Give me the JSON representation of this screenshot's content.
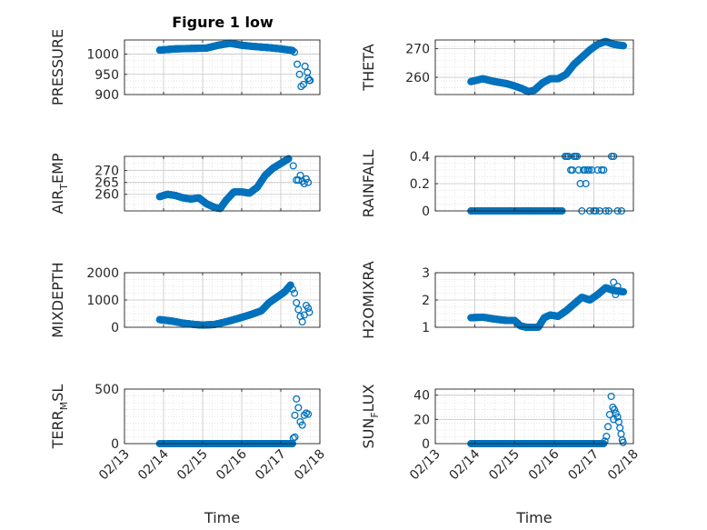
{
  "figure": {
    "title": "Figure 1 low"
  },
  "colors": {
    "marker": "#0072BD",
    "grid": "#dcdcdc",
    "axis": "#262626"
  },
  "chart_data": [
    {
      "type": "scatter",
      "id": "pressure",
      "ylabel": {
        "base": "PRESSURE",
        "sub": ""
      },
      "xlabel": "",
      "xlim": [
        0,
        5
      ],
      "ylim": [
        900,
        1035
      ],
      "yticks": [
        900,
        950,
        1000
      ],
      "ytick_labels": [
        "900",
        "950",
        "1000"
      ],
      "xticks": [
        0,
        1,
        2,
        3,
        4,
        5
      ],
      "xtick_labels": [],
      "xrange": [
        0.9,
        4.75
      ],
      "segments": [
        {
          "xs": [
            0.9,
            1.3,
            1.7,
            2.1,
            2.4,
            2.7,
            3.0,
            3.3,
            3.7,
            4.0,
            4.3
          ],
          "ys": [
            1010,
            1013,
            1014,
            1015,
            1022,
            1027,
            1022,
            1019,
            1016,
            1013,
            1009
          ],
          "n": 240
        }
      ],
      "points": [
        [
          4.35,
          1005
        ],
        [
          4.42,
          975
        ],
        [
          4.48,
          950
        ],
        [
          4.52,
          920
        ],
        [
          4.58,
          925
        ],
        [
          4.62,
          970
        ],
        [
          4.68,
          955
        ],
        [
          4.73,
          935
        ],
        [
          4.75,
          935
        ],
        [
          4.7,
          940
        ]
      ]
    },
    {
      "type": "scatter",
      "id": "theta",
      "ylabel": {
        "base": "THETA",
        "sub": ""
      },
      "xlabel": "",
      "xlim": [
        0,
        5
      ],
      "ylim": [
        254,
        273
      ],
      "yticks": [
        260,
        270
      ],
      "ytick_labels": [
        "260",
        "270"
      ],
      "xticks": [
        0,
        1,
        2,
        3,
        4,
        5
      ],
      "xtick_labels": [],
      "xrange": [
        0.9,
        4.75
      ],
      "segments": [
        {
          "xs": [
            0.9,
            1.2,
            1.5,
            1.8,
            2.0,
            2.2,
            2.35,
            2.5,
            2.7,
            2.9,
            3.1,
            3.3,
            3.5,
            3.7,
            3.9,
            4.1,
            4.3,
            4.5,
            4.75
          ],
          "ys": [
            258.5,
            259.5,
            258.5,
            257.8,
            257,
            256,
            255,
            255.5,
            258,
            259.5,
            259.5,
            261,
            264.5,
            267,
            269.5,
            271.5,
            272.5,
            271.5,
            271
          ],
          "n": 260
        }
      ],
      "points": []
    },
    {
      "type": "scatter",
      "id": "air-temp",
      "ylabel": {
        "base": "AIR",
        "sub": "T",
        "rest": "EMP"
      },
      "xlabel": "",
      "xlim": [
        0,
        5
      ],
      "ylim": [
        253,
        276
      ],
      "yticks": [
        260,
        265,
        270
      ],
      "ytick_labels": [
        "260",
        "265",
        "270"
      ],
      "xticks": [
        0,
        1,
        2,
        3,
        4,
        5
      ],
      "xtick_labels": [],
      "xrange": [
        0.9,
        4.75
      ],
      "segments": [
        {
          "xs": [
            0.9,
            1.1,
            1.3,
            1.5,
            1.7,
            1.9,
            2.1,
            2.3,
            2.45,
            2.6,
            2.8,
            3.0,
            3.2,
            3.4,
            3.6,
            3.8,
            4.0,
            4.2
          ],
          "ys": [
            259,
            260,
            259.5,
            258.5,
            258,
            258.5,
            256,
            254.5,
            254,
            257.5,
            261,
            261,
            260.5,
            263,
            268,
            271,
            273,
            275
          ],
          "n": 240
        }
      ],
      "points": [
        [
          4.32,
          272
        ],
        [
          4.4,
          266
        ],
        [
          4.45,
          266
        ],
        [
          4.5,
          268
        ],
        [
          4.55,
          265.5
        ],
        [
          4.6,
          264.5
        ],
        [
          4.65,
          266.5
        ],
        [
          4.7,
          265
        ]
      ]
    },
    {
      "type": "scatter",
      "id": "rainfall",
      "ylabel": {
        "base": "RAINFALL",
        "sub": ""
      },
      "xlabel": "",
      "xlim": [
        0,
        5
      ],
      "ylim": [
        0,
        0.4
      ],
      "yticks": [
        0,
        0.2,
        0.4
      ],
      "ytick_labels": [
        "0",
        "0.2",
        "0.4"
      ],
      "xticks": [
        0,
        1,
        2,
        3,
        4,
        5
      ],
      "xtick_labels": [],
      "xrange": [
        0.9,
        4.75
      ],
      "segments": [
        {
          "xs": [
            0.9,
            3.2
          ],
          "ys": [
            0,
            0
          ],
          "n": 190
        }
      ],
      "points": [
        [
          3.28,
          0.4
        ],
        [
          3.32,
          0.4
        ],
        [
          3.36,
          0.4
        ],
        [
          3.42,
          0.3
        ],
        [
          3.46,
          0.3
        ],
        [
          3.5,
          0.4
        ],
        [
          3.54,
          0.4
        ],
        [
          3.58,
          0.4
        ],
        [
          3.62,
          0.3
        ],
        [
          3.66,
          0.2
        ],
        [
          3.7,
          0
        ],
        [
          3.74,
          0.3
        ],
        [
          3.78,
          0.3
        ],
        [
          3.8,
          0.2
        ],
        [
          3.84,
          0.3
        ],
        [
          3.88,
          0.3
        ],
        [
          3.9,
          0
        ],
        [
          3.95,
          0.3
        ],
        [
          4.0,
          0
        ],
        [
          4.05,
          0
        ],
        [
          4.1,
          0.3
        ],
        [
          4.15,
          0
        ],
        [
          4.2,
          0.3
        ],
        [
          4.25,
          0.3
        ],
        [
          4.3,
          0
        ],
        [
          4.38,
          0
        ],
        [
          4.45,
          0.4
        ],
        [
          4.5,
          0.4
        ],
        [
          4.6,
          0
        ],
        [
          4.7,
          0
        ]
      ]
    },
    {
      "type": "scatter",
      "id": "mixdepth",
      "ylabel": {
        "base": "MIXDEPTH",
        "sub": ""
      },
      "xlabel": "",
      "xlim": [
        0,
        5
      ],
      "ylim": [
        0,
        2000
      ],
      "yticks": [
        0,
        1000,
        2000
      ],
      "ytick_labels": [
        "0",
        "1000",
        "2000"
      ],
      "xticks": [
        0,
        1,
        2,
        3,
        4,
        5
      ],
      "xtick_labels": [],
      "xrange": [
        0.9,
        4.75
      ],
      "segments": [
        {
          "xs": [
            0.9,
            1.2,
            1.5,
            1.8,
            2.0,
            2.3,
            2.6,
            2.9,
            3.2,
            3.5,
            3.7,
            3.9,
            4.1,
            4.25
          ],
          "ys": [
            280,
            230,
            150,
            100,
            80,
            100,
            200,
            320,
            450,
            600,
            900,
            1100,
            1300,
            1550
          ],
          "n": 230
        }
      ],
      "points": [
        [
          4.3,
          1400
        ],
        [
          4.35,
          1250
        ],
        [
          4.4,
          900
        ],
        [
          4.45,
          650
        ],
        [
          4.5,
          400
        ],
        [
          4.55,
          200
        ],
        [
          4.6,
          450
        ],
        [
          4.65,
          800
        ],
        [
          4.7,
          700
        ],
        [
          4.73,
          550
        ]
      ]
    },
    {
      "type": "scatter",
      "id": "h2omixra",
      "ylabel": {
        "base": "H2OMIXRA",
        "sub": ""
      },
      "xlabel": "",
      "xlim": [
        0,
        5
      ],
      "ylim": [
        1,
        3
      ],
      "yticks": [
        1,
        2,
        3
      ],
      "ytick_labels": [
        "1",
        "2",
        "3"
      ],
      "xticks": [
        0,
        1,
        2,
        3,
        4,
        5
      ],
      "xtick_labels": [],
      "xrange": [
        0.9,
        4.75
      ],
      "segments": [
        {
          "xs": [
            0.9,
            1.2,
            1.5,
            1.8,
            2.0,
            2.15,
            2.3,
            2.5,
            2.6,
            2.75,
            2.9,
            3.1,
            3.3,
            3.5,
            3.7,
            3.9,
            4.1,
            4.3,
            4.5,
            4.75
          ],
          "ys": [
            1.35,
            1.37,
            1.3,
            1.25,
            1.25,
            1.05,
            1.0,
            1.0,
            1.0,
            1.35,
            1.45,
            1.4,
            1.6,
            1.85,
            2.1,
            2.0,
            2.2,
            2.45,
            2.35,
            2.3
          ],
          "n": 260
        }
      ],
      "points": [
        [
          4.5,
          2.65
        ],
        [
          4.55,
          2.2
        ],
        [
          4.6,
          2.5
        ]
      ]
    },
    {
      "type": "scatter",
      "id": "terr-msl",
      "ylabel": {
        "base": "TERR",
        "sub": "M",
        "rest": "SL"
      },
      "xlabel": "Time",
      "xlim": [
        0,
        5
      ],
      "ylim": [
        0,
        500
      ],
      "yticks": [
        0,
        500
      ],
      "ytick_labels": [
        "0",
        "500"
      ],
      "xticks": [
        0,
        1,
        2,
        3,
        4,
        5
      ],
      "xtick_labels": [
        "02/13",
        "02/14",
        "02/15",
        "02/16",
        "02/17",
        "02/18"
      ],
      "xrange": [
        0.9,
        4.75
      ],
      "segments": [
        {
          "xs": [
            0.9,
            4.3
          ],
          "ys": [
            0,
            0
          ],
          "n": 260
        }
      ],
      "points": [
        [
          4.32,
          50
        ],
        [
          4.36,
          260
        ],
        [
          4.4,
          410
        ],
        [
          4.45,
          330
        ],
        [
          4.5,
          200
        ],
        [
          4.55,
          170
        ],
        [
          4.6,
          260
        ],
        [
          4.65,
          280
        ],
        [
          4.7,
          270
        ],
        [
          4.36,
          60
        ]
      ]
    },
    {
      "type": "scatter",
      "id": "sun-flux",
      "ylabel": {
        "base": "SUN",
        "sub": "F",
        "rest": "LUX"
      },
      "xlabel": "Time",
      "xlim": [
        0,
        5
      ],
      "ylim": [
        0,
        45
      ],
      "yticks": [
        0,
        20,
        40
      ],
      "ytick_labels": [
        "0",
        "20",
        "40"
      ],
      "xticks": [
        0,
        1,
        2,
        3,
        4,
        5
      ],
      "xtick_labels": [
        "02/13",
        "02/14",
        "02/15",
        "02/16",
        "02/17",
        "02/18"
      ],
      "xrange": [
        0.9,
        4.75
      ],
      "segments": [
        {
          "xs": [
            0.9,
            4.25
          ],
          "ys": [
            0,
            0
          ],
          "n": 250
        }
      ],
      "points": [
        [
          4.28,
          2
        ],
        [
          4.32,
          6
        ],
        [
          4.36,
          14
        ],
        [
          4.4,
          24
        ],
        [
          4.44,
          39
        ],
        [
          4.48,
          30
        ],
        [
          4.52,
          28
        ],
        [
          4.56,
          25
        ],
        [
          4.6,
          22
        ],
        [
          4.63,
          18
        ],
        [
          4.66,
          13
        ],
        [
          4.69,
          8
        ],
        [
          4.72,
          3
        ],
        [
          4.74,
          1
        ],
        [
          4.5,
          20
        ]
      ]
    }
  ]
}
